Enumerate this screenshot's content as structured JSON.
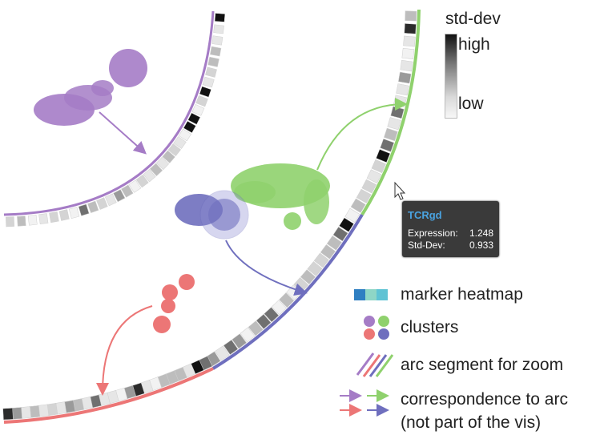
{
  "stddev_legend": {
    "title": "std-dev",
    "high_label": "high",
    "low_label": "low"
  },
  "tooltip": {
    "marker": "TCRgd",
    "rows": [
      {
        "label": "Expression:",
        "value": "1.248"
      },
      {
        "label": "Std-Dev:",
        "value": "0.933"
      }
    ]
  },
  "legend": {
    "items": [
      {
        "text": "marker heatmap"
      },
      {
        "text": "clusters"
      },
      {
        "text": "arc segment for zoom"
      },
      {
        "text": "correspondence to arc"
      },
      {
        "text": "(not part of the vis)"
      }
    ]
  },
  "colors": {
    "purple": "#a57cc6",
    "green": "#8fd16d",
    "blue": "#6f6fbe",
    "red": "#ec7676",
    "heatmap_blue": "#2f7fc2",
    "heatmap_cyan": "#5fc3d4",
    "heatmap_teal": "#8ed6c6"
  }
}
